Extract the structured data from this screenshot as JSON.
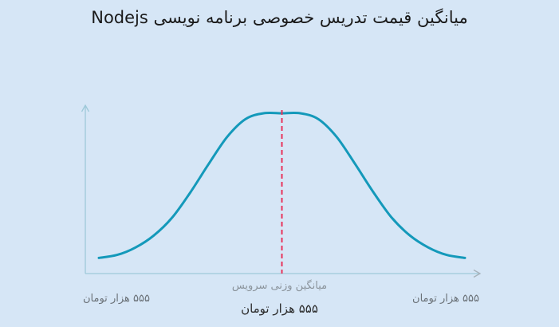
{
  "chart_data": {
    "type": "line",
    "title": "میانگین قیمت تدریس خصوصی برنامه نویسی Nodejs",
    "mean_caption": "میانگین وزنی سرویس",
    "mean_value_label": "۵۵۵ هزار تومان",
    "min_label": "۵۵۵ هزار تومان",
    "max_label": "۵۵۵ هزار تومان",
    "x_range": [
      0,
      1
    ],
    "mean": 0.5,
    "curve": {
      "x": [
        0.0,
        0.05,
        0.1,
        0.15,
        0.2,
        0.25,
        0.3,
        0.35,
        0.4,
        0.45,
        0.5,
        0.55,
        0.6,
        0.65,
        0.7,
        0.75,
        0.8,
        0.85,
        0.9,
        0.95,
        1.0
      ],
      "y": [
        0.03,
        0.05,
        0.1,
        0.18,
        0.3,
        0.47,
        0.66,
        0.84,
        0.96,
        1.0,
        1.0,
        1.0,
        0.96,
        0.84,
        0.66,
        0.47,
        0.3,
        0.18,
        0.1,
        0.05,
        0.03
      ]
    },
    "colors": {
      "curve": "#1499ba",
      "mean_line": "#e8335a",
      "axis": "#9ec9d9",
      "background": "#d6e6f6"
    },
    "grid": false
  }
}
